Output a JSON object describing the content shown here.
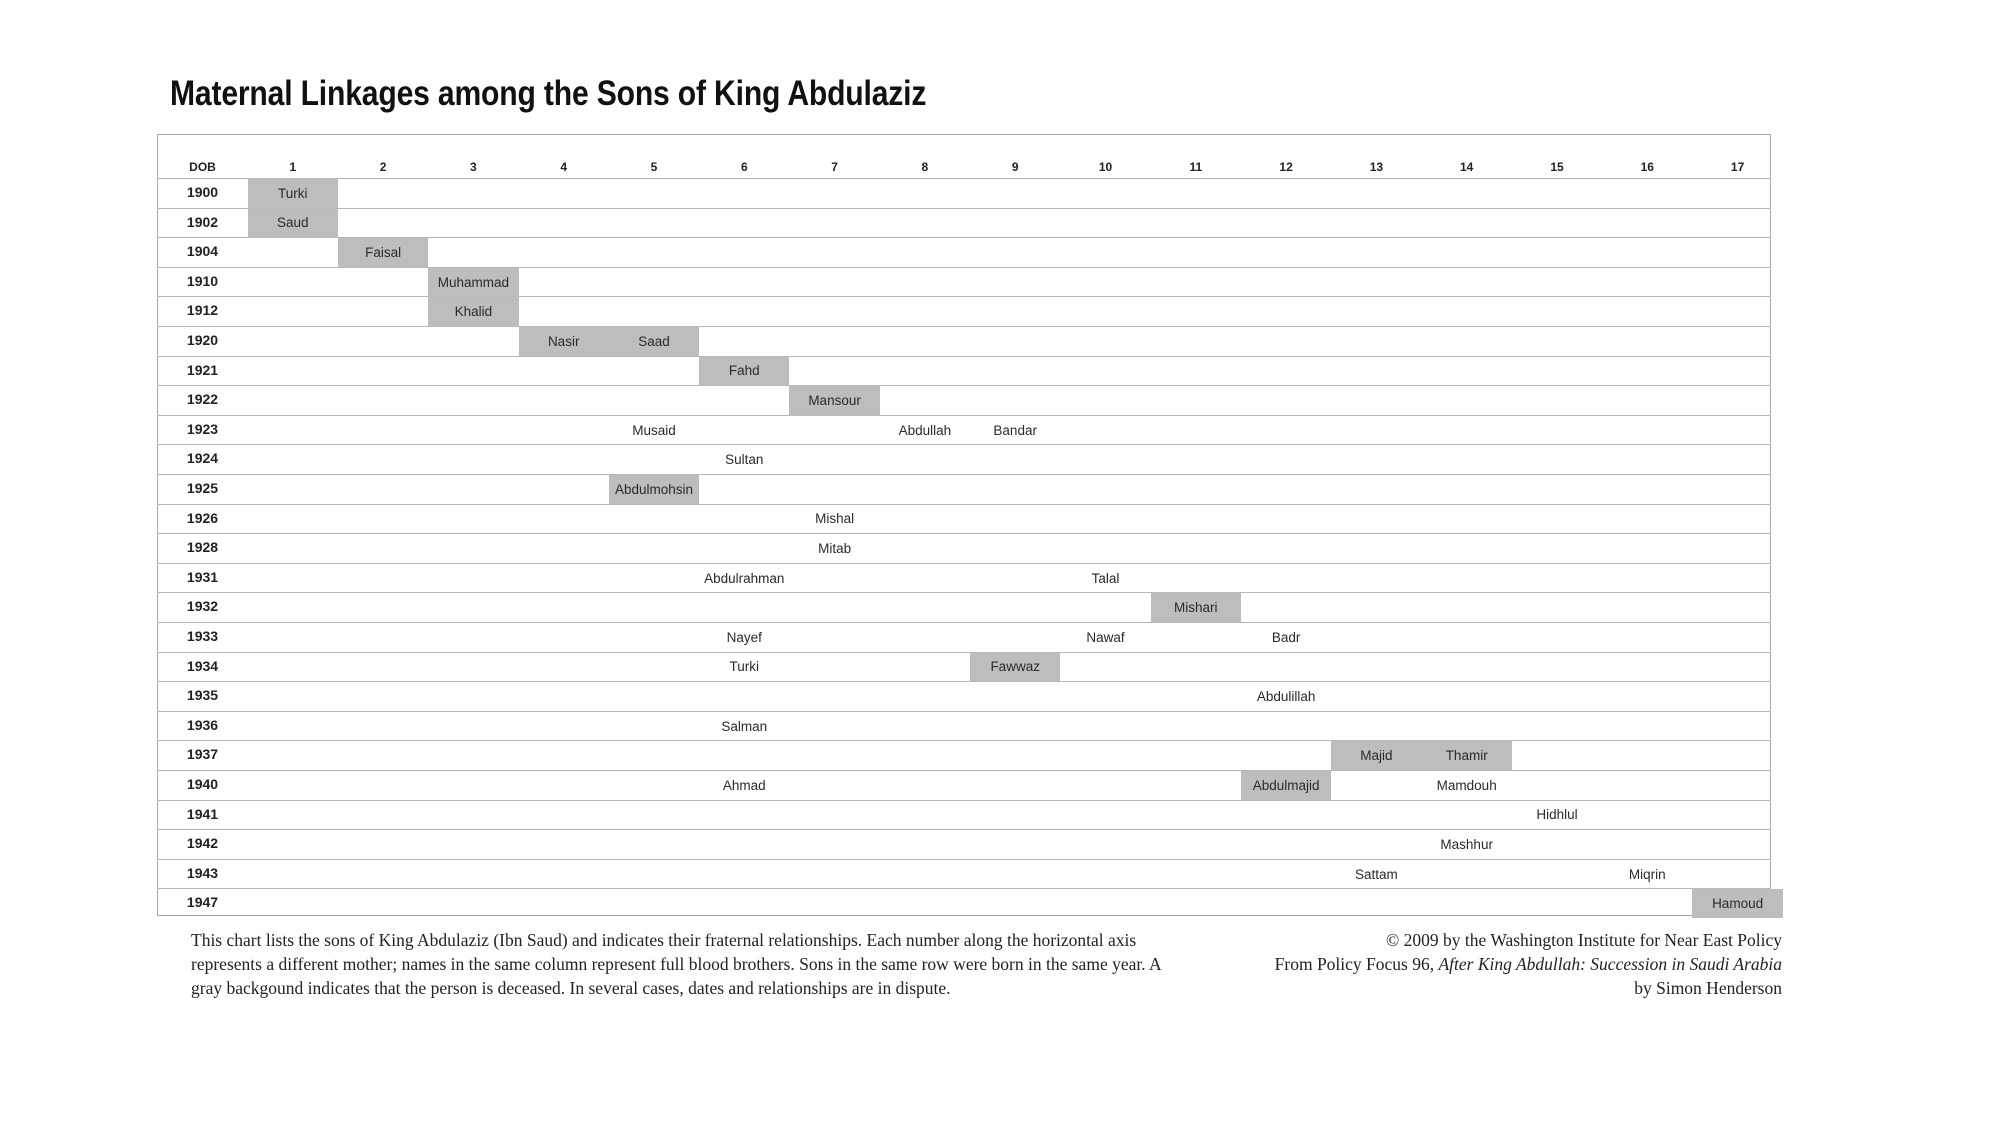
{
  "title": "Maternal Linkages among the Sons of King Abdulaziz",
  "chart_data": {
    "type": "table",
    "row_header_label": "DOB",
    "columns": [
      "1",
      "2",
      "3",
      "4",
      "5",
      "6",
      "7",
      "8",
      "9",
      "10",
      "11",
      "12",
      "13",
      "14",
      "15",
      "16",
      "17"
    ],
    "rows": [
      "1900",
      "1902",
      "1904",
      "1910",
      "1912",
      "1920",
      "1921",
      "1922",
      "1923",
      "1924",
      "1925",
      "1926",
      "1928",
      "1931",
      "1932",
      "1933",
      "1934",
      "1935",
      "1936",
      "1937",
      "1940",
      "1941",
      "1942",
      "1943",
      "1947"
    ],
    "entries": [
      {
        "name": "Turki",
        "year": "1900",
        "mother": 1,
        "deceased": true
      },
      {
        "name": "Saud",
        "year": "1902",
        "mother": 1,
        "deceased": true
      },
      {
        "name": "Faisal",
        "year": "1904",
        "mother": 2,
        "deceased": true
      },
      {
        "name": "Muhammad",
        "year": "1910",
        "mother": 3,
        "deceased": true
      },
      {
        "name": "Khalid",
        "year": "1912",
        "mother": 3,
        "deceased": true
      },
      {
        "name": "Nasir",
        "year": "1920",
        "mother": 4,
        "deceased": true
      },
      {
        "name": "Saad",
        "year": "1920",
        "mother": 5,
        "deceased": true
      },
      {
        "name": "Fahd",
        "year": "1921",
        "mother": 6,
        "deceased": true
      },
      {
        "name": "Mansour",
        "year": "1922",
        "mother": 7,
        "deceased": true
      },
      {
        "name": "Musaid",
        "year": "1923",
        "mother": 5,
        "deceased": false
      },
      {
        "name": "Abdullah",
        "year": "1923",
        "mother": 8,
        "deceased": false
      },
      {
        "name": "Bandar",
        "year": "1923",
        "mother": 9,
        "deceased": false
      },
      {
        "name": "Sultan",
        "year": "1924",
        "mother": 6,
        "deceased": false
      },
      {
        "name": "Abdulmohsin",
        "year": "1925",
        "mother": 5,
        "deceased": true
      },
      {
        "name": "Mishal",
        "year": "1926",
        "mother": 7,
        "deceased": false
      },
      {
        "name": "Mitab",
        "year": "1928",
        "mother": 7,
        "deceased": false
      },
      {
        "name": "Abdulrahman",
        "year": "1931",
        "mother": 6,
        "deceased": false
      },
      {
        "name": "Talal",
        "year": "1931",
        "mother": 10,
        "deceased": false
      },
      {
        "name": "Mishari",
        "year": "1932",
        "mother": 11,
        "deceased": true
      },
      {
        "name": "Nayef",
        "year": "1933",
        "mother": 6,
        "deceased": false
      },
      {
        "name": "Nawaf",
        "year": "1933",
        "mother": 10,
        "deceased": false
      },
      {
        "name": "Badr",
        "year": "1933",
        "mother": 12,
        "deceased": false
      },
      {
        "name": "Turki",
        "year": "1934",
        "mother": 6,
        "deceased": false
      },
      {
        "name": "Fawwaz",
        "year": "1934",
        "mother": 9,
        "deceased": true
      },
      {
        "name": "Abdulillah",
        "year": "1935",
        "mother": 12,
        "deceased": false
      },
      {
        "name": "Salman",
        "year": "1936",
        "mother": 6,
        "deceased": false
      },
      {
        "name": "Majid",
        "year": "1937",
        "mother": 13,
        "deceased": true
      },
      {
        "name": "Thamir",
        "year": "1937",
        "mother": 14,
        "deceased": true
      },
      {
        "name": "Ahmad",
        "year": "1940",
        "mother": 6,
        "deceased": false
      },
      {
        "name": "Abdulmajid",
        "year": "1940",
        "mother": 12,
        "deceased": true
      },
      {
        "name": "Mamdouh",
        "year": "1940",
        "mother": 14,
        "deceased": false
      },
      {
        "name": "Hidhlul",
        "year": "1941",
        "mother": 15,
        "deceased": false
      },
      {
        "name": "Mashhur",
        "year": "1942",
        "mother": 14,
        "deceased": false
      },
      {
        "name": "Sattam",
        "year": "1943",
        "mother": 13,
        "deceased": false
      },
      {
        "name": "Miqrin",
        "year": "1943",
        "mother": 16,
        "deceased": false
      },
      {
        "name": "Hamoud",
        "year": "1947",
        "mother": 17,
        "deceased": true
      }
    ],
    "colors": {
      "deceased_fill": "#bdbdbd",
      "grid_line": "#b8b8b8"
    }
  },
  "footnote": "This chart lists the sons of King Abdulaziz (Ibn Saud) and indicates their fraternal relationships. Each number along the horizontal axis represents a different mother; names in the same column represent full blood brothers. Sons in the same row were born in the same year. A gray backgound indicates that the person is deceased. In several cases, dates and relationships are in dispute.",
  "credit": {
    "copyright": "© 2009 by the Washington Institute for Near East Policy",
    "source_prefix": "From Policy Focus 96, ",
    "source_title": "After King Abdullah: Succession in Saudi Arabia",
    "author": "by Simon Henderson"
  }
}
